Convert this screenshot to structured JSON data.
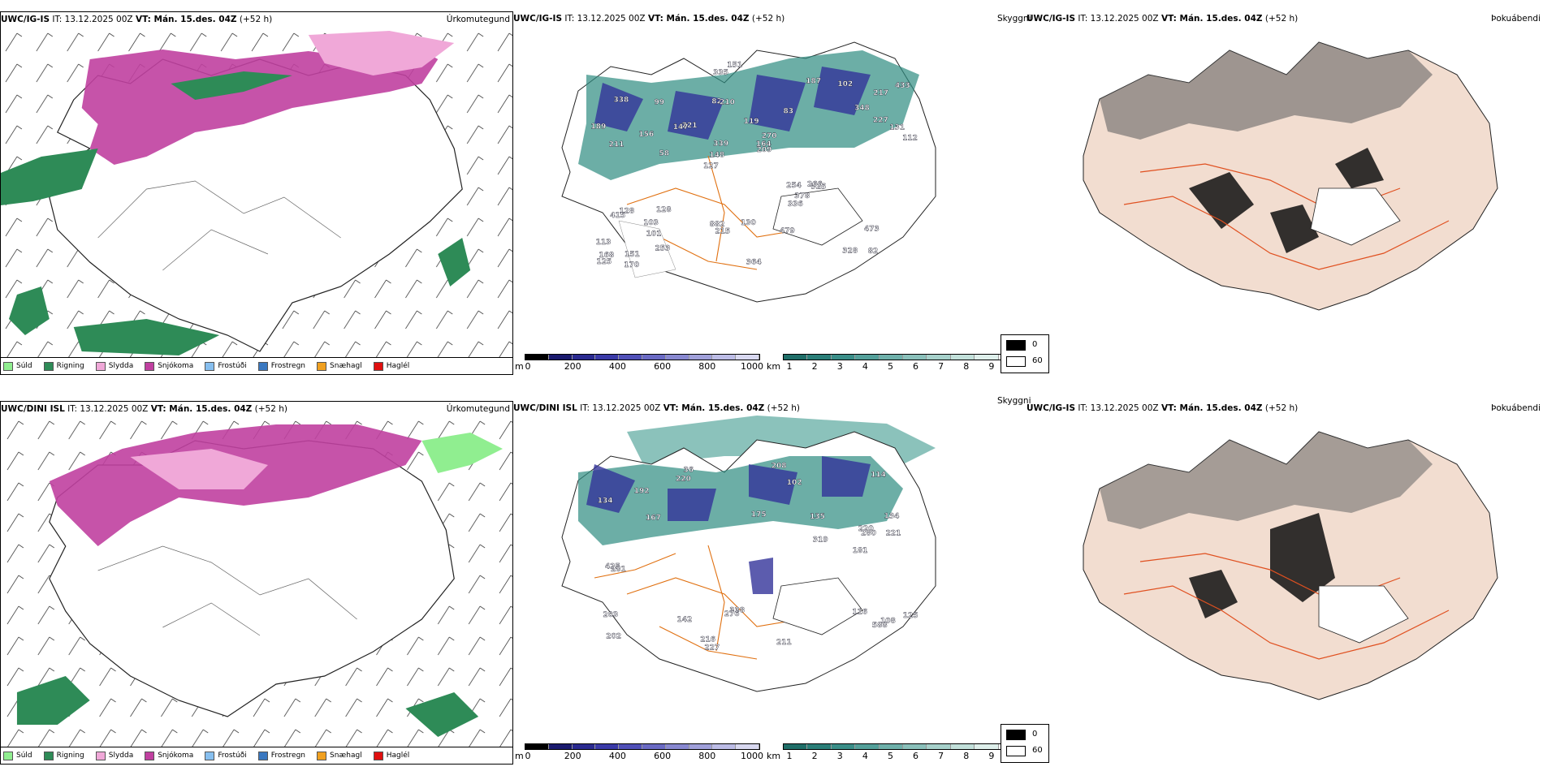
{
  "panels": {
    "top_left": {
      "model": "UWC/IG-IS",
      "it": "IT: 13.12.2025 00Z",
      "vt": "VT: Mán. 15.des. 04Z",
      "lead": "(+52 h)",
      "kind": "Úrkomutegund"
    },
    "top_mid": {
      "model": "UWC/IG-IS",
      "it": "IT: 13.12.2025 00Z",
      "vt": "VT: Mán. 15.des. 04Z",
      "lead": "(+52 h)",
      "kind": "Skyggni"
    },
    "top_right": {
      "model": "UWC/IG-IS",
      "it": "IT: 13.12.2025 00Z",
      "vt": "VT: Mán. 15.des. 04Z",
      "lead": "(+52 h)",
      "kind": "Þokuábendi"
    },
    "bot_left": {
      "model": "UWC/DINI ISL",
      "it": "IT: 13.12.2025 00Z",
      "vt": "VT: Mán. 15.des. 04Z",
      "lead": "(+52 h)",
      "kind": "Úrkomutegund"
    },
    "bot_mid": {
      "model": "UWC/DINI ISL",
      "it": "IT: 13.12.2025 00Z",
      "vt": "VT: Mán. 15.des. 04Z",
      "lead": "(+52 h)",
      "kind": "Skyggni"
    },
    "bot_right": {
      "model": "UWC/IG-IS",
      "it": "IT: 13.12.2025 00Z",
      "vt": "VT: Mán. 15.des. 04Z",
      "lead": "(+52 h)",
      "kind": "Þokuábendi"
    }
  },
  "precip_legend": [
    {
      "label": "Súld",
      "color": "#90ee90"
    },
    {
      "label": "Rigning",
      "color": "#2e8b57"
    },
    {
      "label": "Slydda",
      "color": "#f0a8d8"
    },
    {
      "label": "Snjókoma",
      "color": "#c040a0"
    },
    {
      "label": "Frostúði",
      "color": "#87bfef"
    },
    {
      "label": "Frostregn",
      "color": "#3a78c0"
    },
    {
      "label": "Snæhagl",
      "color": "#f0a020"
    },
    {
      "label": "Haglél",
      "color": "#e01010"
    }
  ],
  "ceiling_bar": {
    "unit": "m",
    "ticks": [
      "0",
      "200",
      "400",
      "600",
      "800",
      "1000"
    ]
  },
  "vis_bar": {
    "unit": "km",
    "ticks": [
      "1",
      "2",
      "3",
      "4",
      "5",
      "6",
      "7",
      "8",
      "9",
      "10"
    ]
  },
  "fog_bar": {
    "min": "0",
    "max": "60"
  },
  "labels_top": [
    "82",
    "211",
    "217",
    "127",
    "83",
    "151",
    "82",
    "119",
    "128",
    "221",
    "113",
    "101",
    "210",
    "270",
    "325",
    "338",
    "335",
    "112",
    "254",
    "227",
    "148",
    "882",
    "339",
    "99",
    "187",
    "128",
    "328",
    "473",
    "266",
    "364",
    "147",
    "156",
    "336",
    "253",
    "131",
    "164",
    "168",
    "215",
    "209",
    "415",
    "348",
    "433",
    "378",
    "479",
    "103",
    "170",
    "125",
    "130",
    "102",
    "151",
    "58",
    "189"
  ],
  "labels_bot": [
    "116",
    "134",
    "108",
    "175",
    "202",
    "36",
    "220",
    "142",
    "114",
    "167",
    "221",
    "134",
    "181",
    "227",
    "203",
    "192",
    "588",
    "220",
    "338",
    "280",
    "425",
    "281",
    "211",
    "319",
    "216",
    "276",
    "208",
    "102",
    "135",
    "125"
  ]
}
